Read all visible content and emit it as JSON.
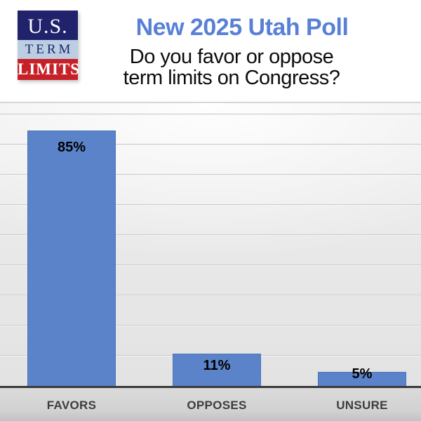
{
  "logo": {
    "line1": "U.S.",
    "line2": "TERM",
    "line3": "LIMITS"
  },
  "header": {
    "title": "New 2025 Utah Poll",
    "subtitle_line1": "Do you favor or oppose",
    "subtitle_line2": "term limits on Congress?"
  },
  "colors": {
    "title_blue": "#5880D6",
    "bar_fill": "#5B83C9",
    "bar_border": "#4C74BA",
    "logo_navy": "#20226B",
    "logo_light_blue": "#BCCFE2",
    "logo_red": "#C62128",
    "axis_line": "#3A3A3A",
    "category_label": "#3D3D3D"
  },
  "chart_data": {
    "type": "bar",
    "title": "New 2025 Utah Poll",
    "subtitle": "Do you favor or oppose term limits on Congress?",
    "categories": [
      "FAVORS",
      "OPPOSES",
      "UNSURE"
    ],
    "values": [
      85,
      11,
      5
    ],
    "value_labels": [
      "85%",
      "11%",
      "5%"
    ],
    "xlabel": "",
    "ylabel": "",
    "ylim": [
      0,
      94
    ],
    "gridline_interval_percent": 10,
    "grid": true,
    "legend": false,
    "value_label_position": "inside-end",
    "bar_color": "#5B83C9"
  }
}
